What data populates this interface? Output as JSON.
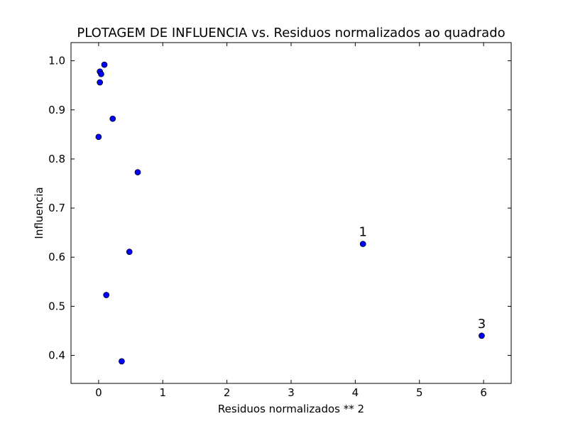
{
  "chart_data": {
    "type": "scatter",
    "title": "PLOTAGEM DE INFLUENCIA vs. Residuos normalizados ao quadrado",
    "xlabel": "Residuos normalizados ** 2",
    "ylabel": "Influencia",
    "xlim": [
      -0.43,
      6.43
    ],
    "ylim": [
      0.343,
      1.037
    ],
    "xticks": [
      0,
      1,
      2,
      3,
      4,
      5,
      6
    ],
    "yticks": [
      0.4,
      0.5,
      0.6,
      0.7,
      0.8,
      0.9,
      1.0
    ],
    "xtick_labels": [
      "0",
      "1",
      "2",
      "3",
      "4",
      "5",
      "6"
    ],
    "ytick_labels": [
      "0.4",
      "0.5",
      "0.6",
      "0.7",
      "0.8",
      "0.9",
      "1.0"
    ],
    "grid": false,
    "marker_color": "#0000ff",
    "points": [
      {
        "x": 0.09,
        "y": 0.992
      },
      {
        "x": 0.02,
        "y": 0.978
      },
      {
        "x": 0.04,
        "y": 0.973
      },
      {
        "x": 0.02,
        "y": 0.956
      },
      {
        "x": 0.22,
        "y": 0.882
      },
      {
        "x": 0.0,
        "y": 0.845
      },
      {
        "x": 0.61,
        "y": 0.773
      },
      {
        "x": 4.12,
        "y": 0.627
      },
      {
        "x": 0.48,
        "y": 0.611
      },
      {
        "x": 0.12,
        "y": 0.523
      },
      {
        "x": 5.97,
        "y": 0.44
      },
      {
        "x": 0.36,
        "y": 0.388
      }
    ],
    "annotations": [
      {
        "text": "1",
        "x": 4.12,
        "y": 0.627
      },
      {
        "text": "3",
        "x": 5.97,
        "y": 0.44
      }
    ]
  }
}
